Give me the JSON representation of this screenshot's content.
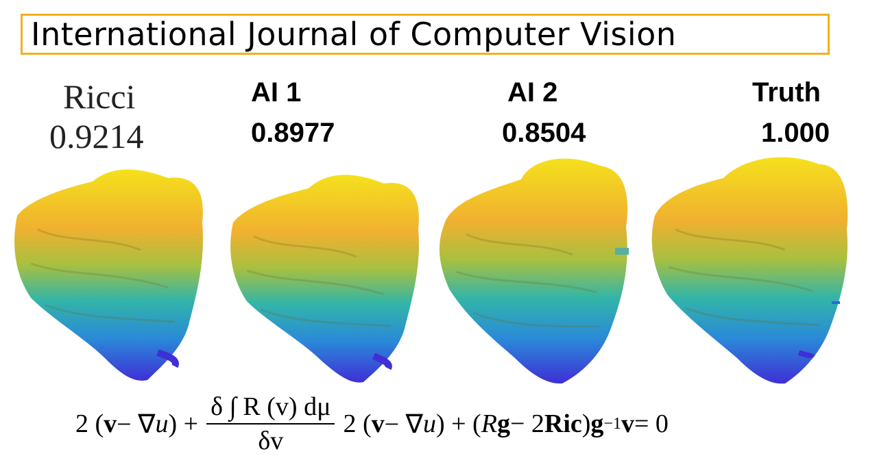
{
  "journal": {
    "title": "International Journal of Computer Vision"
  },
  "panels": [
    {
      "name": "Ricci",
      "score": "0.9214"
    },
    {
      "name": "AI 1",
      "score": "0.8977"
    },
    {
      "name": "AI 2",
      "score": "0.8504"
    },
    {
      "name": "Truth",
      "score": "1.000"
    }
  ],
  "colors": {
    "frame": "#f2b01e",
    "mesh_top": "#f5e11c",
    "mesh_mid": "#32b5a8",
    "mesh_bottom": "#3f2fd6"
  },
  "equation": {
    "left": "2 (",
    "v": "v",
    "minus_grad": " − ∇",
    "u": "u",
    "close_plus": ") + ",
    "frac_num": "δ ∫ R (v) dμ",
    "frac_den": "δv",
    "right_a": " 2 (",
    "right_b": ") + (",
    "R": "R",
    "g": "g",
    "minus2": " − 2",
    "Ric": "Ric",
    "close": ") ",
    "ginv": "g",
    "sup": "−1",
    "equals": " = 0"
  }
}
